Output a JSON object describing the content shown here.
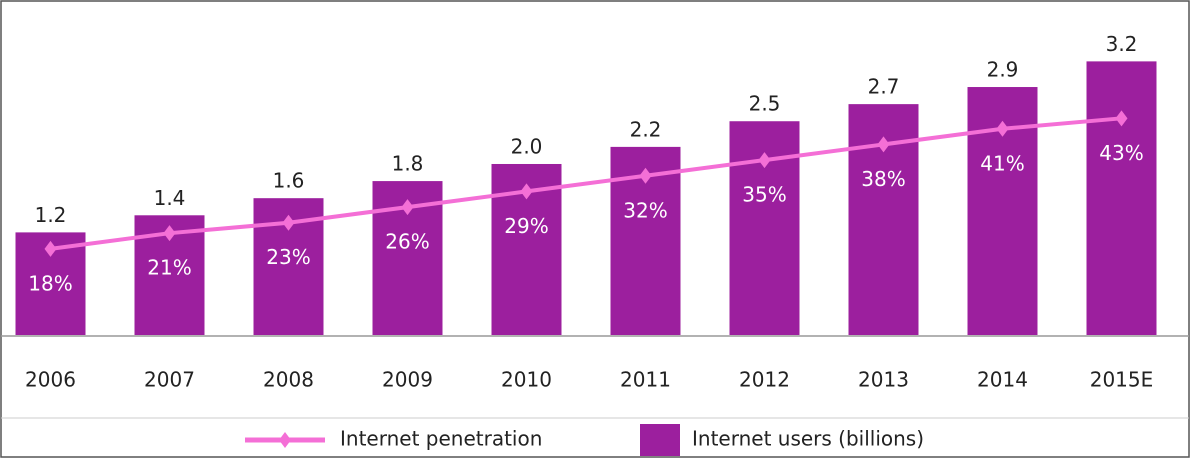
{
  "chart_data": {
    "type": "bar-line",
    "categories": [
      "2006",
      "2007",
      "2008",
      "2009",
      "2010",
      "2011",
      "2012",
      "2013",
      "2014",
      "2015E"
    ],
    "series": [
      {
        "name": "Internet penetration",
        "type": "line",
        "axis": "y2",
        "color": "#f46fd6",
        "values": [
          18,
          21,
          23,
          26,
          29,
          32,
          35,
          38,
          41,
          43
        ],
        "value_labels": [
          "18%",
          "21%",
          "23%",
          "26%",
          "29%",
          "32%",
          "35%",
          "38%",
          "41%",
          "43%"
        ]
      },
      {
        "name": "Internet users (billions)",
        "type": "bar",
        "color": "#9c1f9e",
        "values": [
          1.2,
          1.4,
          1.6,
          1.8,
          2.0,
          2.2,
          2.5,
          2.7,
          2.9,
          3.2
        ],
        "value_labels": [
          "1.2",
          "1.4",
          "1.6",
          "1.8",
          "2.0",
          "2.2",
          "2.5",
          "2.7",
          "2.9",
          "3.2"
        ]
      }
    ],
    "ylim": [
      0,
      3.45
    ],
    "y2lim": [
      1.5,
      58
    ],
    "legend": "bottom"
  }
}
